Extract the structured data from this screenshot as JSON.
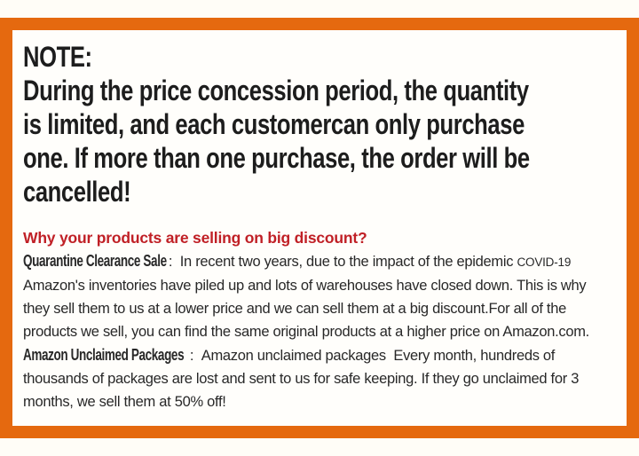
{
  "theme": {
    "accent-orange": "#E5690F",
    "heading-red": "#C02026",
    "headline-black": "#1D1D1D",
    "body-text": "#282828",
    "outer-bg": "#FFFDF7",
    "inner-bg": "#FFFEFB"
  },
  "notice": {
    "title": "NOTE:",
    "lines": [
      "During the price concession period, the quantity",
      "is limited, and each customercan only purchase",
      "one. If more than one purchase, the order will be",
      "cancelled!"
    ]
  },
  "discount_heading": "Why your products are selling on big discount?",
  "quarantine": {
    "lead": "Quarantine Clearance Sale",
    "separator": " :  ",
    "line1_text": "In recent two years, due to the impact of the epidemic ",
    "covid_label": "COVID-19",
    "lines": [
      "Amazon's inventories have piled up and lots of warehouses have closed down. This is why",
      "they sell them to us at a lower price and we can sell them at a big discount.For all of the",
      "products we sell, you can find the same original products at a higher price on Amazon.com."
    ]
  },
  "unclaimed": {
    "lead": "Amazon Unclaimed Packages",
    "separator": " :  ",
    "line1_text": "Amazon unclaimed packages  Every month, hundreds of",
    "lines": [
      "thousands of packages are lost and sent to us for safe keeping. If they go unclaimed for 3",
      "months, we sell them at 50% off!"
    ]
  }
}
